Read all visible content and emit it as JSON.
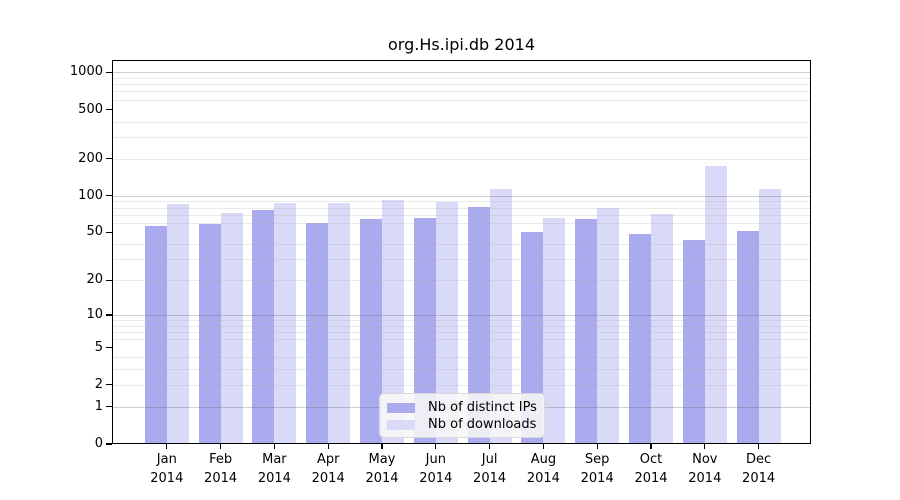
{
  "page": {
    "background": "#ffffff"
  },
  "chart_data": {
    "type": "bar",
    "title": "org.Hs.ipi.db 2014",
    "categories": [
      "Jan",
      "Feb",
      "Mar",
      "Apr",
      "May",
      "Jun",
      "Jul",
      "Aug",
      "Sep",
      "Oct",
      "Nov",
      "Dec"
    ],
    "category_year": "2014",
    "series": [
      {
        "name": "Nb of distinct IPs",
        "color": "#aaaaee",
        "values": [
          56,
          59,
          76,
          60,
          64,
          66,
          81,
          50,
          65,
          49,
          43,
          51
        ]
      },
      {
        "name": "Nb of downloads",
        "color": "#d9d9f8",
        "values": [
          86,
          72,
          87,
          87,
          92,
          89,
          113,
          66,
          79,
          71,
          176,
          114
        ]
      }
    ],
    "y_axis": {
      "scale": "log10(1+x)",
      "ticks": [
        0,
        1,
        2,
        5,
        10,
        20,
        50,
        100,
        200,
        500,
        1000
      ],
      "top_value": 1257
    },
    "x_axis": {
      "tick_years": "2014"
    },
    "grid": {
      "on": true,
      "major_color": "#c9c9c9",
      "minor_color": "#ececec",
      "major_lines": [
        1,
        10,
        100,
        1000
      ],
      "minor_lines": [
        2,
        3,
        4,
        6,
        7,
        8,
        9,
        20,
        30,
        40,
        60,
        70,
        80,
        90,
        200,
        300,
        400,
        600,
        700,
        800,
        900
      ]
    },
    "legend": {
      "position": "inside-bottom-center"
    },
    "colors": {
      "axis": "#000000",
      "text": "#000000"
    }
  }
}
